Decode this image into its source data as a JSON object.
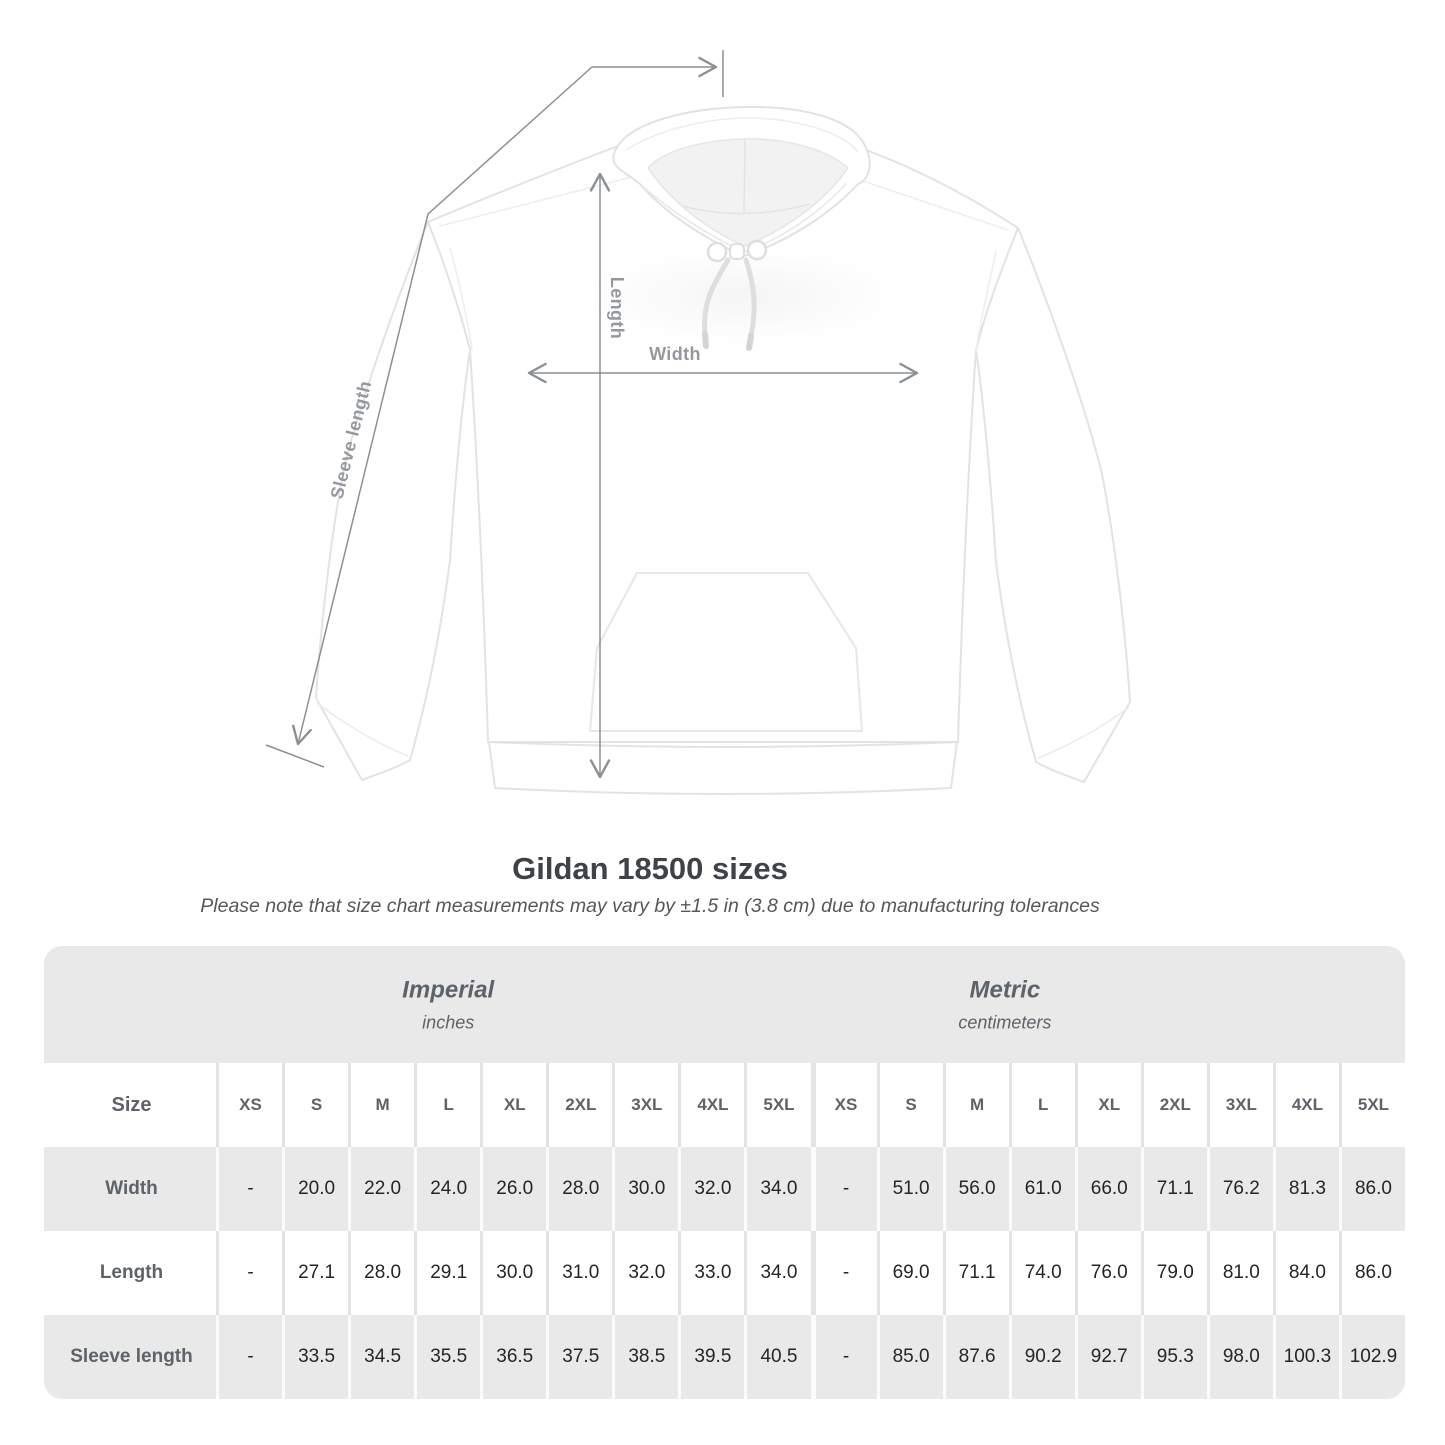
{
  "page": {
    "title": "Gildan 18500 sizes",
    "subtitle": "Please note that size chart measurements may vary by ±1.5 in (3.8 cm) due to manufacturing tolerances"
  },
  "diagram": {
    "garment": "white pullover hoodie flat-lay photo",
    "labels": {
      "width": "Width",
      "length": "Length",
      "sleeve": "Sleeve length"
    }
  },
  "table": {
    "size_header": "Size",
    "sections": [
      {
        "name": "Imperial",
        "unit": "inches"
      },
      {
        "name": "Metric",
        "unit": "centimeters"
      }
    ],
    "sizes": [
      "XS",
      "S",
      "M",
      "L",
      "XL",
      "2XL",
      "3XL",
      "4XL",
      "5XL"
    ],
    "rows": [
      {
        "label": "Width",
        "imperial": [
          "-",
          "20.0",
          "22.0",
          "24.0",
          "26.0",
          "28.0",
          "30.0",
          "32.0",
          "34.0"
        ],
        "metric": [
          "-",
          "51.0",
          "56.0",
          "61.0",
          "66.0",
          "71.1",
          "76.2",
          "81.3",
          "86.0"
        ]
      },
      {
        "label": "Length",
        "imperial": [
          "-",
          "27.1",
          "28.0",
          "29.1",
          "30.0",
          "31.0",
          "32.0",
          "33.0",
          "34.0"
        ],
        "metric": [
          "-",
          "69.0",
          "71.1",
          "74.0",
          "76.0",
          "79.0",
          "81.0",
          "84.0",
          "86.0"
        ]
      },
      {
        "label": "Sleeve length",
        "imperial": [
          "-",
          "33.5",
          "34.5",
          "35.5",
          "36.5",
          "37.5",
          "38.5",
          "39.5",
          "40.5"
        ],
        "metric": [
          "-",
          "85.0",
          "87.6",
          "90.2",
          "92.7",
          "95.3",
          "98.0",
          "100.3",
          "102.9"
        ]
      }
    ]
  },
  "colors": {
    "band_bg": "#e9e9e9",
    "row_alt_bg": "#e9e9e9",
    "heading_text": "#5d6368",
    "value_text": "#232629",
    "title_text": "#3f4347",
    "arrow_gray": "#8b9094",
    "label_gray": "#95999d"
  }
}
